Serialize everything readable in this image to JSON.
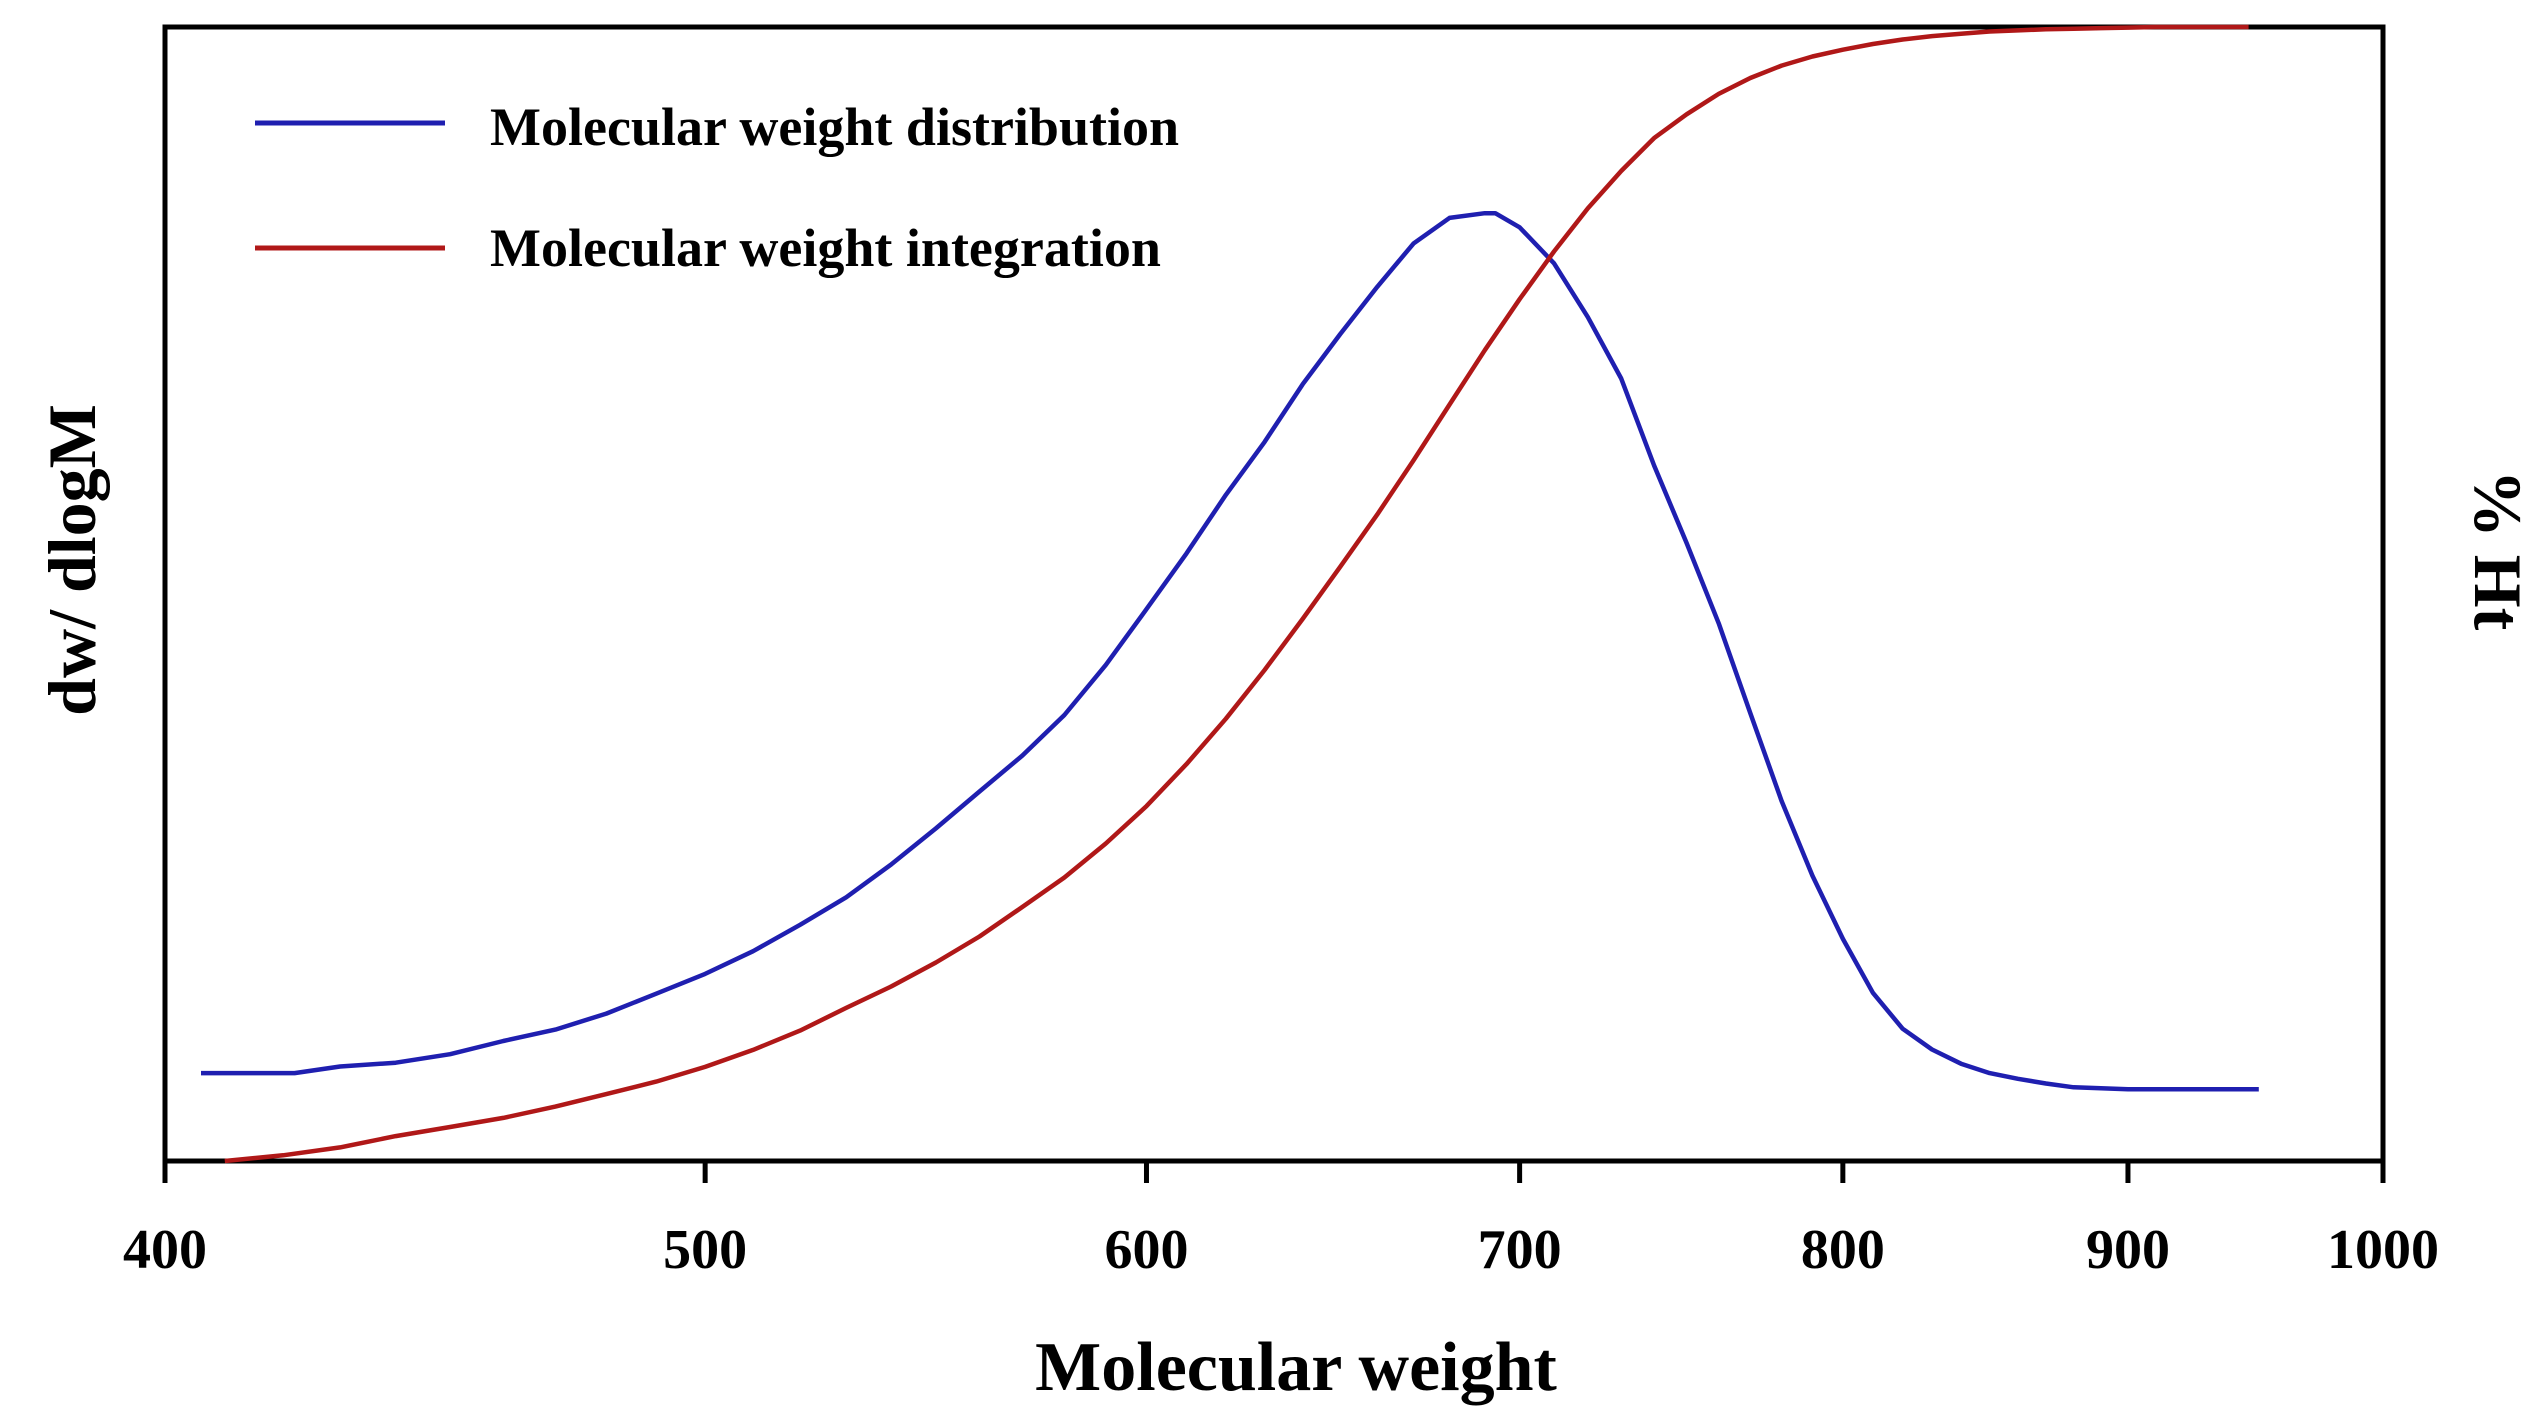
{
  "chart_data": {
    "type": "line",
    "xlabel": "Molecular weight",
    "ylabel_left": "dw/ dlogM",
    "ylabel_right": "% Ht",
    "xticks": [
      400,
      500,
      600,
      700,
      800,
      900,
      1000
    ],
    "xlim": [
      400,
      1000
    ],
    "x_scale": "log",
    "y_left_lim": [
      0,
      1.2
    ],
    "y_right_lim": [
      0,
      100
    ],
    "legend_position": "top-left",
    "series": [
      {
        "name": "Molecular weight distribution",
        "color": "#1f1fb0",
        "axis": "left",
        "x": [
          406,
          412,
          416,
          419,
          422,
          430,
          440,
          450,
          460,
          470,
          480,
          490,
          500,
          510,
          520,
          530,
          540,
          550,
          560,
          570,
          580,
          590,
          600,
          610,
          620,
          630,
          640,
          650,
          660,
          670,
          680,
          690,
          693,
          700,
          710,
          720,
          730,
          740,
          750,
          760,
          770,
          780,
          790,
          800,
          810,
          820,
          830,
          840,
          850,
          860,
          870,
          880,
          890,
          900,
          910,
          920,
          930,
          940,
          950
        ],
        "y": [
          0.093,
          0.093,
          0.093,
          0.093,
          0.093,
          0.1,
          0.104,
          0.113,
          0.127,
          0.139,
          0.156,
          0.177,
          0.198,
          0.222,
          0.25,
          0.279,
          0.314,
          0.352,
          0.391,
          0.429,
          0.472,
          0.525,
          0.584,
          0.643,
          0.705,
          0.761,
          0.822,
          0.875,
          0.925,
          0.971,
          0.998,
          1.003,
          1.003,
          0.988,
          0.95,
          0.893,
          0.828,
          0.736,
          0.654,
          0.569,
          0.474,
          0.381,
          0.302,
          0.235,
          0.178,
          0.14,
          0.118,
          0.103,
          0.093,
          0.087,
          0.082,
          0.078,
          0.077,
          0.076,
          0.076,
          0.076,
          0.076,
          0.076,
          0.076
        ]
      },
      {
        "name": "Molecular weight integration",
        "color": "#b01818",
        "axis": "right",
        "x": [
          410,
          420,
          430,
          440,
          450,
          460,
          470,
          480,
          490,
          500,
          510,
          520,
          530,
          540,
          550,
          560,
          570,
          580,
          590,
          600,
          610,
          620,
          630,
          640,
          650,
          660,
          670,
          680,
          690,
          700,
          710,
          720,
          730,
          740,
          750,
          760,
          770,
          780,
          790,
          800,
          810,
          820,
          830,
          840,
          850,
          860,
          870,
          880,
          890,
          900,
          910,
          920,
          930,
          940,
          946
        ],
        "y": [
          0.0,
          0.5,
          1.2,
          2.2,
          3.0,
          3.8,
          4.8,
          5.9,
          7.0,
          8.3,
          9.8,
          11.5,
          13.5,
          15.4,
          17.5,
          19.8,
          22.4,
          25.0,
          28.0,
          31.3,
          35.0,
          39.0,
          43.3,
          47.8,
          52.4,
          57.0,
          61.8,
          66.7,
          71.5,
          76.0,
          80.2,
          84.0,
          87.3,
          90.2,
          92.3,
          94.1,
          95.5,
          96.6,
          97.4,
          98.0,
          98.5,
          98.9,
          99.2,
          99.4,
          99.6,
          99.7,
          99.8,
          99.85,
          99.9,
          99.95,
          100.0,
          100.0,
          100.0,
          100.0,
          100.0
        ]
      }
    ]
  }
}
